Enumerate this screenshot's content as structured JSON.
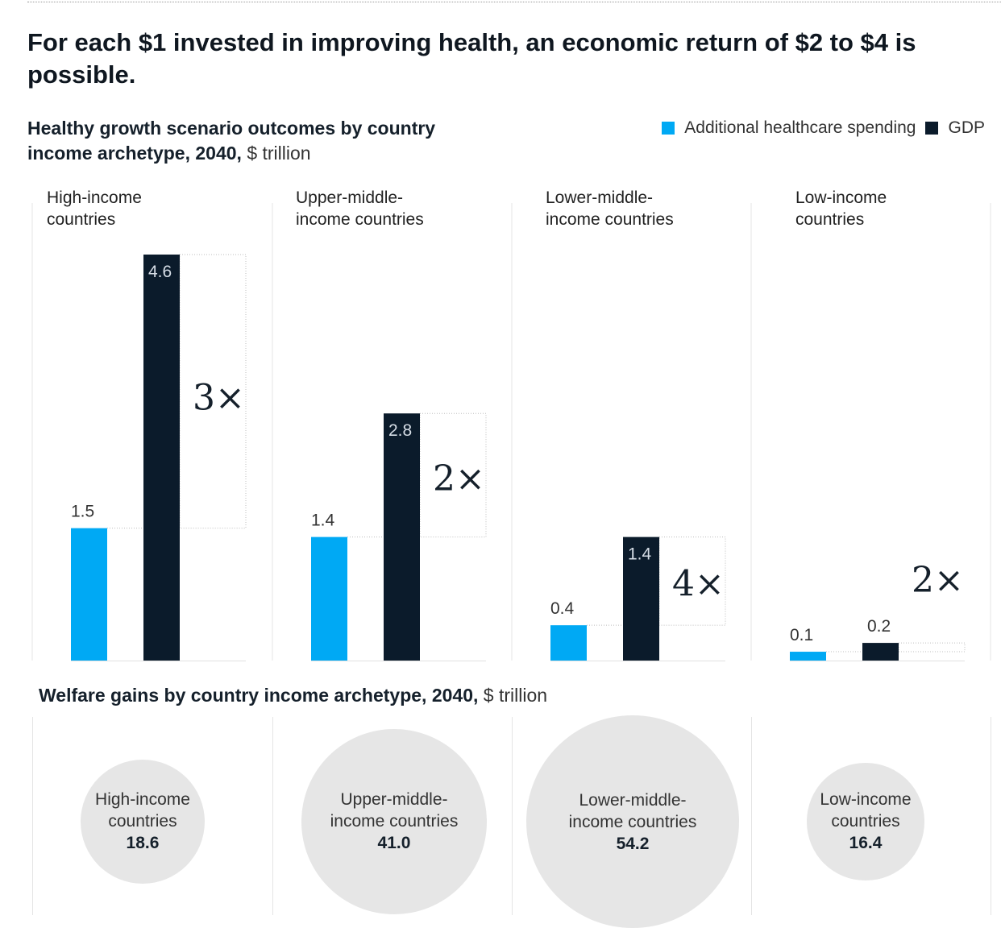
{
  "title": "For each $1 invested in improving health, an economic return of $2 to $4 is possible.",
  "chart_subtitle": {
    "strong": "Healthy growth scenario outcomes by country income archetype, 2040,",
    "unit": "$ trillion"
  },
  "legend": [
    {
      "label": "Additional healthcare spending",
      "color": "#00a9f4"
    },
    {
      "label": "GDP",
      "color": "#0b1b2b"
    }
  ],
  "chart_data": {
    "type": "bar",
    "categories": [
      "High-income countries",
      "Upper-middle-income countries",
      "Lower-middle-income countries",
      "Low-income countries"
    ],
    "category_lines": [
      [
        "High-income",
        "countries"
      ],
      [
        "Upper-middle-",
        "income countries"
      ],
      [
        "Lower-middle-",
        "income countries"
      ],
      [
        "Low-income",
        "countries"
      ]
    ],
    "series": [
      {
        "name": "Additional healthcare spending",
        "values": [
          1.5,
          1.4,
          0.4,
          0.1
        ],
        "labels": [
          "1.5",
          "1.4",
          "0.4",
          "0.1"
        ],
        "color": "#00a9f4"
      },
      {
        "name": "GDP",
        "values": [
          4.6,
          2.8,
          1.4,
          0.2
        ],
        "labels": [
          "4.6",
          "2.8",
          "1.4",
          "0.2"
        ],
        "color": "#0b1b2b"
      }
    ],
    "multipliers": [
      "3×",
      "2×",
      "4×",
      "2×"
    ],
    "ylim": [
      0,
      4.6
    ]
  },
  "welfare": {
    "title_strong": "Welfare gains by country income archetype, 2040,",
    "title_unit": "$ trillion",
    "items": [
      {
        "lines": [
          "High-income",
          "countries"
        ],
        "value": 18.6,
        "label": "18.6"
      },
      {
        "lines": [
          "Upper-middle-",
          "income countries"
        ],
        "value": 41.0,
        "label": "41.0"
      },
      {
        "lines": [
          "Lower-middle-",
          "income countries"
        ],
        "value": 54.2,
        "label": "54.2"
      },
      {
        "lines": [
          "Low-income",
          "countries"
        ],
        "value": 16.4,
        "label": "16.4"
      }
    ]
  }
}
